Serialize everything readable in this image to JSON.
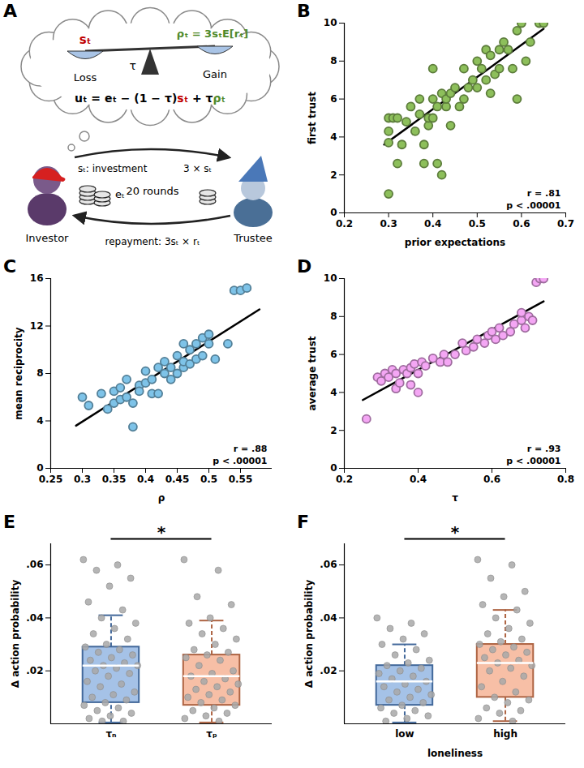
{
  "diagram": {
    "panel": "A",
    "scale": {
      "left": {
        "text": "sₜ",
        "color": "#c00000"
      },
      "pivot": "τ",
      "right": {
        "text": "ρₜ = 3sₜE[rₜ]",
        "color": "#4f8a2a"
      },
      "left_label": "Loss",
      "right_label": "Gain"
    },
    "utility": [
      {
        "text": "uₜ = eₜ − (1 − τ)"
      },
      {
        "text": "sₜ",
        "color": "#c00000"
      },
      {
        "text": " + τ"
      },
      {
        "text": "ρₜ",
        "color": "#4f8a2a"
      }
    ],
    "investor": "Investor",
    "trustee": "Trustee",
    "endowment": "eₜ",
    "rounds": "20 rounds",
    "investment": "sₜ: investment",
    "multiplied": "3 × sₜ",
    "repayment": "repayment: 3sₜ × rₜ"
  },
  "chart_data": [
    {
      "panel": "B",
      "type": "scatter",
      "x_label": "prior expectations",
      "y_label": "first trust",
      "x": [
        0.3,
        0.3,
        0.3,
        0.3,
        0.31,
        0.32,
        0.32,
        0.33,
        0.34,
        0.35,
        0.36,
        0.37,
        0.37,
        0.38,
        0.38,
        0.39,
        0.39,
        0.4,
        0.4,
        0.4,
        0.41,
        0.41,
        0.42,
        0.42,
        0.43,
        0.43,
        0.44,
        0.44,
        0.45,
        0.46,
        0.47,
        0.47,
        0.48,
        0.49,
        0.5,
        0.5,
        0.51,
        0.52,
        0.52,
        0.53,
        0.53,
        0.54,
        0.55,
        0.55,
        0.56,
        0.57,
        0.58,
        0.59,
        0.59,
        0.6,
        0.61,
        0.62,
        0.64,
        0.65
      ],
      "y": [
        1.0,
        3.7,
        4.3,
        5.0,
        5.0,
        5.0,
        2.6,
        3.6,
        4.8,
        5.6,
        4.3,
        5.2,
        6.0,
        2.6,
        3.6,
        4.6,
        5.0,
        6.0,
        5.0,
        7.6,
        2.6,
        5.6,
        6.3,
        2.0,
        5.6,
        6.0,
        6.3,
        4.6,
        6.6,
        5.6,
        6.0,
        7.6,
        6.6,
        7.0,
        6.6,
        8.0,
        7.6,
        8.6,
        7.0,
        8.3,
        6.3,
        7.3,
        8.6,
        7.6,
        9.0,
        8.6,
        7.6,
        6.0,
        9.6,
        10.0,
        8.0,
        9.0,
        10.0,
        10.0
      ],
      "xlim": [
        0.2,
        0.7
      ],
      "ylim": [
        0,
        10
      ],
      "xticks": [
        0.2,
        0.3,
        0.4,
        0.5,
        0.6,
        0.7
      ],
      "yticks": [
        0,
        2,
        4,
        6,
        8,
        10
      ],
      "color": "#8dbf5b",
      "marker": "circle",
      "fit_line": {
        "x": [
          0.29,
          0.65
        ],
        "y": [
          3.6,
          9.7
        ]
      },
      "annotations": [
        "r = .81",
        "p < .00001"
      ]
    },
    {
      "panel": "C",
      "type": "scatter",
      "x_label": "ρ",
      "y_label": "mean reciprocity",
      "x": [
        0.3,
        0.31,
        0.33,
        0.34,
        0.35,
        0.35,
        0.36,
        0.36,
        0.37,
        0.37,
        0.38,
        0.38,
        0.39,
        0.39,
        0.4,
        0.4,
        0.41,
        0.41,
        0.42,
        0.42,
        0.43,
        0.43,
        0.44,
        0.44,
        0.45,
        0.45,
        0.46,
        0.46,
        0.46,
        0.47,
        0.47,
        0.48,
        0.48,
        0.49,
        0.49,
        0.5,
        0.5,
        0.51,
        0.53,
        0.54,
        0.55,
        0.56
      ],
      "y": [
        6.0,
        5.3,
        6.3,
        5.0,
        6.5,
        5.5,
        6.8,
        5.8,
        7.5,
        6.0,
        3.5,
        5.5,
        7.0,
        6.5,
        8.2,
        7.2,
        6.3,
        7.5,
        8.5,
        6.3,
        8.0,
        9.0,
        7.5,
        8.5,
        9.5,
        8.0,
        10.5,
        8.5,
        9.0,
        10.0,
        8.8,
        10.5,
        9.2,
        11.0,
        9.5,
        11.3,
        10.5,
        9.2,
        10.5,
        15.0,
        15.0,
        15.2
      ],
      "xlim": [
        0.25,
        0.6
      ],
      "ylim": [
        0,
        16
      ],
      "xticks": [
        0.25,
        0.3,
        0.35,
        0.4,
        0.45,
        0.5,
        0.55
      ],
      "yticks": [
        0,
        4,
        8,
        12,
        16
      ],
      "color": "#7ec3e8",
      "marker": "circle",
      "fit_line": {
        "x": [
          0.29,
          0.58
        ],
        "y": [
          3.6,
          13.4
        ]
      },
      "annotations": [
        "r = .88",
        "p < .00001"
      ]
    },
    {
      "panel": "D",
      "type": "scatter",
      "x_label": "τ",
      "y_label": "average trust",
      "x": [
        0.26,
        0.29,
        0.3,
        0.31,
        0.32,
        0.33,
        0.34,
        0.34,
        0.35,
        0.36,
        0.37,
        0.38,
        0.38,
        0.39,
        0.4,
        0.4,
        0.41,
        0.42,
        0.44,
        0.46,
        0.47,
        0.48,
        0.5,
        0.52,
        0.53,
        0.55,
        0.56,
        0.58,
        0.59,
        0.6,
        0.61,
        0.62,
        0.63,
        0.65,
        0.66,
        0.68,
        0.68,
        0.69,
        0.7,
        0.71,
        0.72,
        0.73,
        0.74
      ],
      "y": [
        2.6,
        4.8,
        4.6,
        5.0,
        4.8,
        5.2,
        4.2,
        5.0,
        4.5,
        5.2,
        5.0,
        5.3,
        4.4,
        5.5,
        5.0,
        4.0,
        5.6,
        5.4,
        5.8,
        5.6,
        6.0,
        5.6,
        6.0,
        6.6,
        6.2,
        6.4,
        6.8,
        6.6,
        7.0,
        7.2,
        6.8,
        7.4,
        7.0,
        7.2,
        7.6,
        7.8,
        8.2,
        7.4,
        8.0,
        7.8,
        9.8,
        10.0,
        10.0
      ],
      "xlim": [
        0.2,
        0.8
      ],
      "ylim": [
        0,
        10
      ],
      "xticks": [
        0.2,
        0.4,
        0.6,
        0.8
      ],
      "yticks": [
        0,
        2,
        4,
        6,
        8,
        10
      ],
      "color": "#f4a6f4",
      "marker": "circle",
      "fit_line": {
        "x": [
          0.25,
          0.74
        ],
        "y": [
          3.6,
          8.8
        ]
      },
      "annotations": [
        "r = .93",
        "p < .00001"
      ]
    },
    {
      "panel": "E",
      "type": "box",
      "y_label": "Δ action probability",
      "categories": [
        "τₙ",
        "τₚ"
      ],
      "colors": [
        "#5b8fd4",
        "#f08a5d"
      ],
      "color": "#a8a8a8",
      "boxes": [
        {
          "whisker_low": 0.0005,
          "q1": 0.008,
          "median": 0.022,
          "q3": 0.029,
          "whisker_high": 0.041
        },
        {
          "whisker_low": 0.0005,
          "q1": 0.007,
          "median": 0.018,
          "q3": 0.026,
          "whisker_high": 0.039
        }
      ],
      "points": [
        [
          0.062,
          0.06,
          0.058,
          0.055,
          0.052,
          0.046,
          0.043,
          0.04,
          0.038,
          0.036,
          0.034,
          0.032,
          0.03,
          0.029,
          0.028,
          0.027,
          0.026,
          0.025,
          0.024,
          0.023,
          0.022,
          0.022,
          0.021,
          0.02,
          0.019,
          0.018,
          0.016,
          0.015,
          0.014,
          0.012,
          0.011,
          0.01,
          0.009,
          0.008,
          0.007,
          0.006,
          0.005,
          0.004,
          0.003,
          0.002,
          0.001,
          0.001
        ],
        [
          0.062,
          0.058,
          0.048,
          0.045,
          0.04,
          0.038,
          0.036,
          0.034,
          0.032,
          0.03,
          0.028,
          0.027,
          0.026,
          0.025,
          0.024,
          0.022,
          0.02,
          0.019,
          0.018,
          0.017,
          0.016,
          0.015,
          0.014,
          0.013,
          0.012,
          0.011,
          0.01,
          0.009,
          0.008,
          0.007,
          0.006,
          0.005,
          0.004,
          0.003,
          0.002,
          0.001
        ]
      ],
      "ylim": [
        0,
        0.068
      ],
      "yticks": [
        {
          "value": 0.02,
          "label": ".02"
        },
        {
          "value": 0.04,
          "label": ".04"
        },
        {
          "value": 0.06,
          "label": ".06"
        }
      ],
      "annotations": [
        "*"
      ]
    },
    {
      "panel": "F",
      "type": "box",
      "x_label": "loneliness",
      "y_label": "Δ action probability",
      "categories": [
        "low",
        "high"
      ],
      "colors": [
        "#5b8fd4",
        "#f08a5d"
      ],
      "color": "#a8a8a8",
      "boxes": [
        {
          "whisker_low": 0.0005,
          "q1": 0.007,
          "median": 0.016,
          "q3": 0.022,
          "whisker_high": 0.03
        },
        {
          "whisker_low": 0.001,
          "q1": 0.01,
          "median": 0.023,
          "q3": 0.03,
          "whisker_high": 0.043
        }
      ],
      "points": [
        [
          0.04,
          0.038,
          0.036,
          0.034,
          0.032,
          0.03,
          0.028,
          0.026,
          0.024,
          0.023,
          0.022,
          0.021,
          0.02,
          0.019,
          0.018,
          0.017,
          0.016,
          0.015,
          0.014,
          0.013,
          0.012,
          0.011,
          0.01,
          0.009,
          0.008,
          0.007,
          0.006,
          0.005,
          0.004,
          0.003,
          0.002,
          0.001
        ],
        [
          0.062,
          0.06,
          0.055,
          0.05,
          0.048,
          0.045,
          0.043,
          0.04,
          0.038,
          0.036,
          0.034,
          0.032,
          0.031,
          0.03,
          0.029,
          0.028,
          0.027,
          0.026,
          0.025,
          0.024,
          0.023,
          0.022,
          0.021,
          0.02,
          0.018,
          0.016,
          0.014,
          0.012,
          0.01,
          0.009,
          0.008,
          0.006,
          0.005,
          0.004,
          0.002,
          0.001
        ]
      ],
      "ylim": [
        0,
        0.068
      ],
      "yticks": [
        {
          "value": 0.02,
          "label": ".02"
        },
        {
          "value": 0.04,
          "label": ".04"
        },
        {
          "value": 0.06,
          "label": ".06"
        }
      ],
      "annotations": [
        "*"
      ]
    }
  ]
}
